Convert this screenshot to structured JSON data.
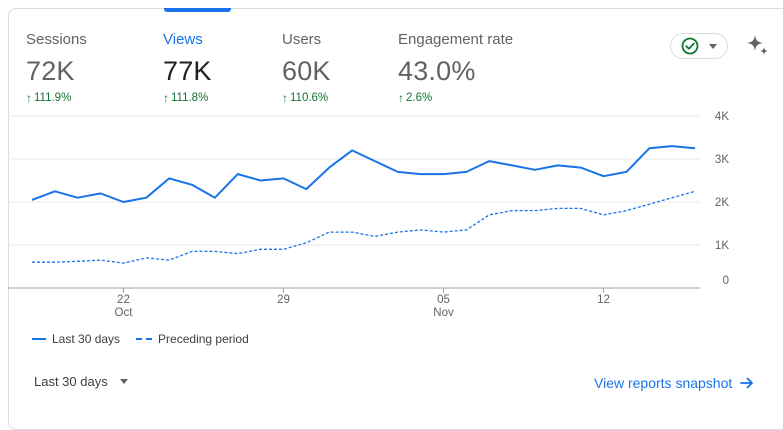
{
  "metrics": [
    {
      "label": "Sessions",
      "value": "72K",
      "change": "111.9%"
    },
    {
      "label": "Views",
      "value": "77K",
      "change": "111.8%"
    },
    {
      "label": "Users",
      "value": "60K",
      "change": "110.6%"
    },
    {
      "label": "Engagement rate",
      "value": "43.0%",
      "change": "2.6%"
    }
  ],
  "active_metric": "Views",
  "icons": {
    "status": "check-circle-icon",
    "menu": "chevron-down-icon",
    "insights": "sparkle-icon",
    "link_arrow": "arrow-right-icon"
  },
  "colors": {
    "accent": "#1a73e8",
    "positive": "#137333",
    "muted": "#5f6368"
  },
  "chart_data": {
    "type": "line",
    "x_ticks": [
      {
        "label": "22",
        "sublabel": "Oct",
        "index": 4
      },
      {
        "label": "29",
        "sublabel": "",
        "index": 11
      },
      {
        "label": "05",
        "sublabel": "Nov",
        "index": 18
      },
      {
        "label": "12",
        "sublabel": "",
        "index": 25
      }
    ],
    "ylim": [
      0,
      4000
    ],
    "y_ticks": [
      {
        "label": "4K",
        "value": 4000
      },
      {
        "label": "3K",
        "value": 3000
      },
      {
        "label": "2K",
        "value": 2000
      },
      {
        "label": "1K",
        "value": 1000
      },
      {
        "label": "0",
        "value": 0
      }
    ],
    "grid": true,
    "legend_position": "bottom-left",
    "series": [
      {
        "name": "Last 30 days",
        "style": "solid",
        "values": [
          2050,
          2250,
          2100,
          2200,
          2000,
          2100,
          2550,
          2400,
          2100,
          2650,
          2500,
          2550,
          2300,
          2800,
          3200,
          2950,
          2700,
          2650,
          2650,
          2700,
          2950,
          2850,
          2750,
          2850,
          2800,
          2600,
          2700,
          3250,
          3300,
          3250
        ]
      },
      {
        "name": "Preceding period",
        "style": "dashed",
        "values": [
          600,
          600,
          620,
          650,
          580,
          700,
          650,
          850,
          850,
          800,
          900,
          900,
          1050,
          1300,
          1300,
          1200,
          1300,
          1350,
          1300,
          1350,
          1700,
          1800,
          1800,
          1850,
          1850,
          1700,
          1800,
          1950,
          2100,
          2250
        ]
      }
    ]
  },
  "footer": {
    "date_range": "Last 30 days",
    "snapshot_link": "View reports snapshot"
  }
}
